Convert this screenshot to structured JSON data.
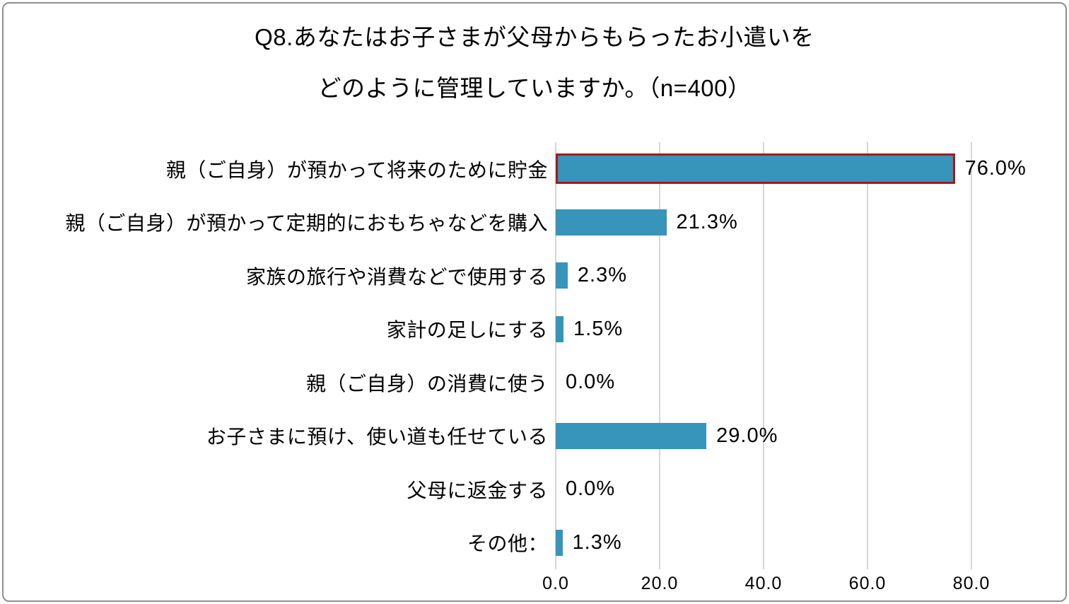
{
  "title": {
    "line1": "Q8.あなたはお子さまが父母からもらったお小遣いを",
    "line2": "どのように管理していますか。（n=400）"
  },
  "chart_data": {
    "type": "bar",
    "orientation": "horizontal",
    "title": "Q8.あなたはお子さまが父母からもらったお小遣いを どのように管理していますか。（n=400）",
    "sample_size": "n=400",
    "categories": [
      "親（ご自身）が預かって将来のために貯金",
      "親（ご自身）が預かって定期的におもちゃなどを購入",
      "家族の旅行や消費などで使用する",
      "家計の足しにする",
      "親（ご自身）の消費に使う",
      "お子さまに預け、使い道も任せている",
      "父母に返金する",
      "その他："
    ],
    "values": [
      76.0,
      21.3,
      2.3,
      1.5,
      0.0,
      29.0,
      0.0,
      1.3
    ],
    "value_labels": [
      "76.0%",
      "21.3%",
      "2.3%",
      "1.5%",
      "0.0%",
      "29.0%",
      "0.0%",
      "1.3%"
    ],
    "x_ticks": [
      "0.0",
      "20.0",
      "40.0",
      "60.0",
      "80.0"
    ],
    "x_tick_values": [
      0,
      20,
      40,
      60,
      80
    ],
    "xlim": [
      0,
      80
    ],
    "grid": true,
    "legend": "none",
    "bar_color": "#3794ba",
    "highlight_index": 0,
    "highlight_border_color": "#9e1b1e",
    "gridline_color": "#d6d6d6"
  }
}
